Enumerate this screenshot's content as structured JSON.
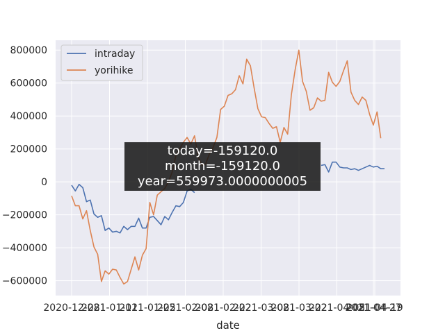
{
  "chart_data": {
    "type": "line",
    "xlabel": "date",
    "ylabel": "",
    "ylim": [
      -690000,
      860000
    ],
    "yticks": [
      -600000,
      -400000,
      -200000,
      0,
      200000,
      400000,
      600000,
      800000
    ],
    "ytick_labels": [
      "−600000",
      "−400000",
      "−200000",
      "0",
      "200000",
      "400000",
      "600000",
      "800000"
    ],
    "xtick_labels": [
      "2020-12-28",
      "2021-01-11",
      "2021-01-25",
      "2021-02-08",
      "2021-02-22",
      "2021-03-08",
      "2021-03-22",
      "2021-04-05",
      "2021-04-19",
      "2021-04-27"
    ],
    "grid": true,
    "legend_position": "upper-left",
    "series": [
      {
        "name": "intraday",
        "color": "#4c72b0",
        "values": [
          -20000,
          -55000,
          -15000,
          -35000,
          -120000,
          -110000,
          -195000,
          -215000,
          -205000,
          -295000,
          -280000,
          -305000,
          -300000,
          -310000,
          -270000,
          -290000,
          -270000,
          -270000,
          -220000,
          -280000,
          -280000,
          -215000,
          -210000,
          -235000,
          -260000,
          -210000,
          -230000,
          -185000,
          -145000,
          -150000,
          -125000,
          -55000,
          -45000,
          -65000,
          null,
          null,
          null,
          null,
          null,
          null,
          null,
          null,
          null,
          null,
          null,
          null,
          null,
          null,
          null,
          null,
          null,
          null,
          null,
          null,
          null,
          null,
          null,
          null,
          null,
          null,
          null,
          null,
          null,
          null,
          null,
          null,
          null,
          100000,
          105000,
          60000,
          120000,
          120000,
          90000,
          85000,
          85000,
          75000,
          80000,
          70000,
          80000,
          90000,
          100000,
          90000,
          95000,
          80000,
          80000
        ]
      },
      {
        "name": "yorihike",
        "color": "#dd8452",
        "values": [
          -85000,
          -145000,
          -145000,
          -225000,
          -175000,
          -295000,
          -395000,
          -440000,
          -605000,
          -540000,
          -560000,
          -530000,
          -535000,
          -580000,
          -620000,
          -605000,
          -530000,
          -455000,
          -535000,
          -445000,
          -405000,
          -125000,
          -200000,
          -80000,
          -60000,
          -40000,
          0,
          60000,
          160000,
          200000,
          240000,
          270000,
          230000,
          280000,
          150000,
          100000,
          110000,
          170000,
          210000,
          270000,
          440000,
          460000,
          525000,
          535000,
          560000,
          645000,
          595000,
          745000,
          705000,
          570000,
          445000,
          395000,
          390000,
          355000,
          325000,
          335000,
          240000,
          330000,
          290000,
          530000,
          680000,
          800000,
          610000,
          550000,
          435000,
          450000,
          510000,
          490000,
          495000,
          665000,
          605000,
          580000,
          610000,
          675000,
          735000,
          545000,
          495000,
          470000,
          515000,
          495000,
          410000,
          345000,
          425000,
          265000
        ]
      }
    ]
  },
  "overlay": {
    "line1": "today=-159120.0",
    "line2": "month=-159120.0",
    "line3": "year=559973.0000000005"
  }
}
